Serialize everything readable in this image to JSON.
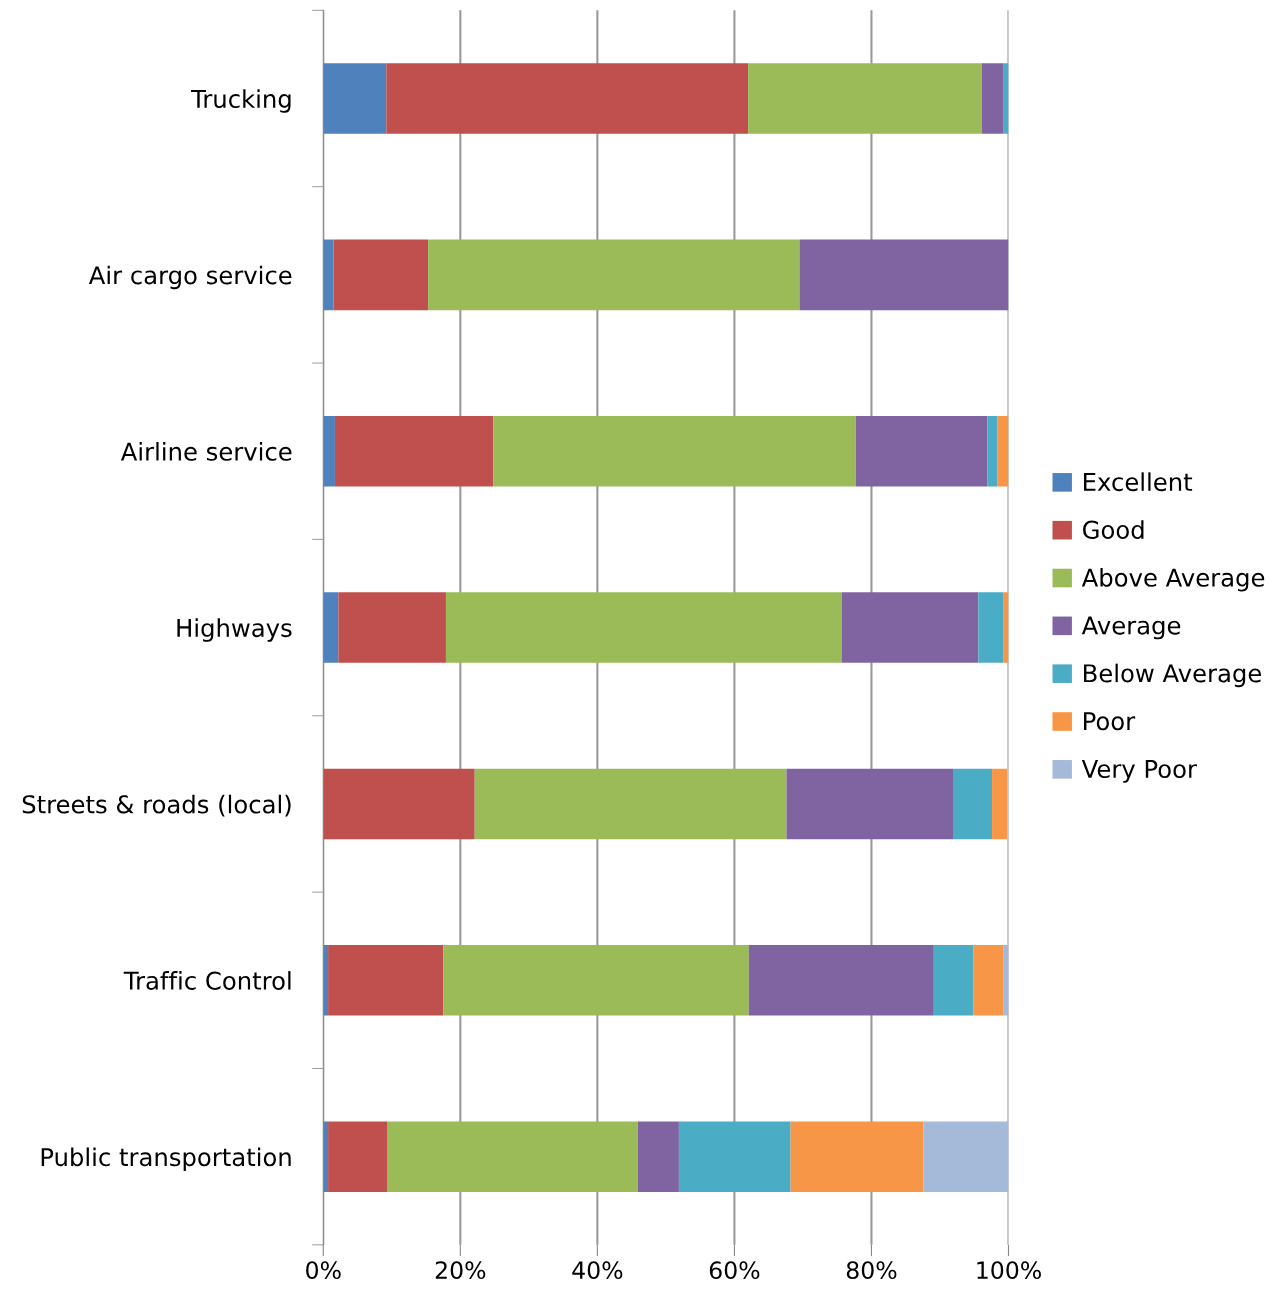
{
  "chart_data": {
    "type": "bar",
    "orientation": "horizontal",
    "stacked": true,
    "categories": [
      "Trucking",
      "Air cargo service",
      "Airline service",
      "Highways",
      "Streets & roads (local)",
      "Traffic Control",
      "Public transportation"
    ],
    "series": [
      {
        "name": "Excellent",
        "color": "#4f81bd",
        "values": [
          9.2,
          1.5,
          1.7,
          2.2,
          null,
          0.7,
          0.7
        ]
      },
      {
        "name": "Good",
        "color": "#c0504d",
        "values": [
          52.8,
          13.8,
          23.1,
          15.7,
          22.1,
          16.8,
          8.6
        ]
      },
      {
        "name": "Above Average",
        "color": "#9bbb59",
        "values": [
          34.1,
          54.2,
          52.9,
          57.8,
          45.5,
          44.6,
          36.6
        ]
      },
      {
        "name": "Average",
        "color": "#8064a2",
        "values": [
          3.2,
          30.5,
          19.2,
          19.9,
          24.3,
          27.0,
          6.0
        ]
      },
      {
        "name": "Below Average",
        "color": "#4bacc6",
        "values": [
          0.7,
          0,
          1.5,
          3.7,
          5.7,
          5.8,
          16.3
        ]
      },
      {
        "name": "Poor",
        "color": "#f79646",
        "values": [
          0,
          0,
          1.6,
          0.7,
          2.2,
          4.4,
          19.4
        ]
      },
      {
        "name": "Very Poor",
        "color": "#a5b9d9",
        "values": [
          0,
          0,
          0,
          0,
          0,
          0.7,
          12.4
        ]
      }
    ],
    "xlim": [
      0,
      100
    ],
    "xticks": [
      {
        "value": 0,
        "label": "0%"
      },
      {
        "value": 20,
        "label": "20%"
      },
      {
        "value": 40,
        "label": "40%"
      },
      {
        "value": 60,
        "label": "60%"
      },
      {
        "value": 80,
        "label": "80%"
      },
      {
        "value": 100,
        "label": "100%"
      }
    ],
    "grid": "x",
    "legend": "right"
  }
}
